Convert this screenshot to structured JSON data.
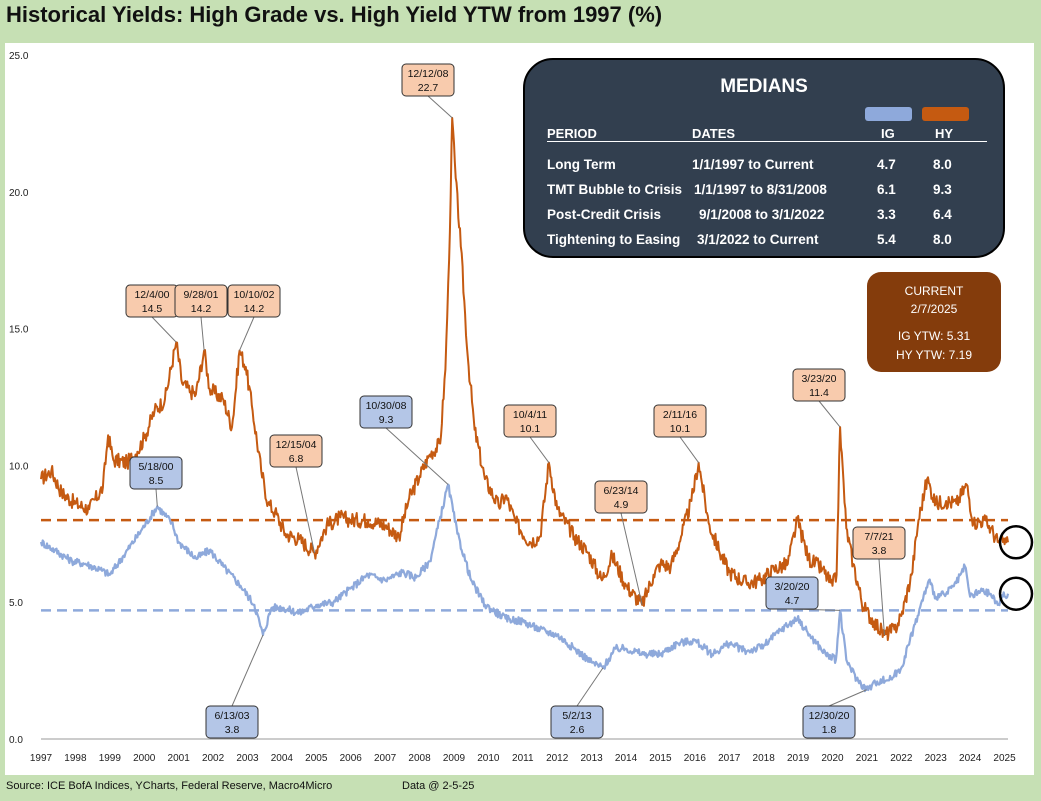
{
  "title": "Historical Yields: High Grade vs. High Yield YTW from 1997 (%)",
  "footer": {
    "source": "Source: ICE BofA Indices, YCharts, Federal Reserve, Macro4Micro",
    "data_date": "Data @ 2-5-25"
  },
  "colors": {
    "hy": "#c55a11",
    "ig": "#8ea9db",
    "hy_label_fill": "#f8cbad",
    "ig_label_fill": "#b4c6e7",
    "medians_box": "#323f4f",
    "current_box": "#843c0c",
    "background": "#c6e0b4"
  },
  "medians": {
    "title": "MEDIANS",
    "headers": {
      "period": "PERIOD",
      "dates": "DATES",
      "ig": "IG",
      "hy": "HY"
    },
    "rows": [
      {
        "period": "Long Term",
        "dates": "1/1/1997 to Current",
        "ig": "4.7",
        "hy": "8.0"
      },
      {
        "period": "TMT Bubble to Crisis",
        "dates": "1/1/1997 to 8/31/2008",
        "ig": "6.1",
        "hy": "9.3"
      },
      {
        "period": "Post-Credit Crisis",
        "dates": "9/1/2008 to 3/1/2022",
        "ig": "3.3",
        "hy": "6.4"
      },
      {
        "period": "Tightening to Easing",
        "dates": "3/1/2022 to Current",
        "ig": "5.4",
        "hy": "8.0"
      }
    ]
  },
  "current": {
    "heading": "CURRENT",
    "date": "2/7/2025",
    "ig_text": "IG YTW:  5.31",
    "hy_text": "HY YTW:  7.19"
  },
  "chart_data": {
    "type": "line",
    "title": "Historical Yields: High Grade vs. High Yield YTW from 1997 (%)",
    "xlabel": "",
    "ylabel": "",
    "xlim": [
      1997,
      2025.1
    ],
    "ylim": [
      0,
      25
    ],
    "y_ticks": [
      "0.0",
      "5.0",
      "10.0",
      "15.0",
      "20.0",
      "25.0"
    ],
    "x_ticks": [
      "1997",
      "1998",
      "1999",
      "2000",
      "2001",
      "2002",
      "2003",
      "2004",
      "2005",
      "2006",
      "2007",
      "2008",
      "2009",
      "2010",
      "2011",
      "2012",
      "2013",
      "2014",
      "2015",
      "2016",
      "2017",
      "2018",
      "2019",
      "2020",
      "2021",
      "2022",
      "2023",
      "2024",
      "2025"
    ],
    "grid": false,
    "legend": "none",
    "series": [
      {
        "key": "hy",
        "color": "#c55a11",
        "points": [
          [
            1997.0,
            9.5
          ],
          [
            1997.3,
            9.8
          ],
          [
            1997.6,
            9.0
          ],
          [
            1998.0,
            8.6
          ],
          [
            1998.4,
            8.4
          ],
          [
            1998.8,
            9.2
          ],
          [
            1998.95,
            11.1
          ],
          [
            1999.1,
            10.2
          ],
          [
            1999.5,
            10.1
          ],
          [
            1999.8,
            10.5
          ],
          [
            2000.0,
            11.0
          ],
          [
            2000.3,
            12.0
          ],
          [
            2000.6,
            12.4
          ],
          [
            2000.93,
            14.5
          ],
          [
            2001.1,
            13.0
          ],
          [
            2001.35,
            12.7
          ],
          [
            2001.5,
            12.6
          ],
          [
            2001.74,
            14.2
          ],
          [
            2001.9,
            12.8
          ],
          [
            2002.3,
            12.4
          ],
          [
            2002.55,
            11.4
          ],
          [
            2002.77,
            14.2
          ],
          [
            2002.95,
            13.6
          ],
          [
            2003.15,
            12.0
          ],
          [
            2003.4,
            9.8
          ],
          [
            2003.6,
            8.6
          ],
          [
            2003.8,
            8.3
          ],
          [
            2004.1,
            7.5
          ],
          [
            2004.5,
            7.3
          ],
          [
            2004.95,
            6.8
          ],
          [
            2005.3,
            7.8
          ],
          [
            2005.7,
            8.1
          ],
          [
            2006.0,
            8.0
          ],
          [
            2006.5,
            8.0
          ],
          [
            2007.0,
            7.8
          ],
          [
            2007.4,
            7.4
          ],
          [
            2007.7,
            8.8
          ],
          [
            2008.0,
            9.6
          ],
          [
            2008.3,
            10.4
          ],
          [
            2008.6,
            10.8
          ],
          [
            2008.75,
            13.5
          ],
          [
            2008.86,
            17.5
          ],
          [
            2008.95,
            22.7
          ],
          [
            2009.05,
            20.5
          ],
          [
            2009.2,
            18.0
          ],
          [
            2009.4,
            14.0
          ],
          [
            2009.6,
            11.3
          ],
          [
            2009.9,
            9.5
          ],
          [
            2010.3,
            8.5
          ],
          [
            2010.5,
            8.9
          ],
          [
            2010.8,
            7.9
          ],
          [
            2011.2,
            7.2
          ],
          [
            2011.5,
            7.4
          ],
          [
            2011.76,
            10.1
          ],
          [
            2012.0,
            8.4
          ],
          [
            2012.5,
            7.4
          ],
          [
            2012.9,
            6.8
          ],
          [
            2013.3,
            5.8
          ],
          [
            2013.6,
            6.7
          ],
          [
            2014.0,
            5.6
          ],
          [
            2014.47,
            4.9
          ],
          [
            2014.8,
            6.0
          ],
          [
            2015.0,
            6.4
          ],
          [
            2015.3,
            6.3
          ],
          [
            2015.6,
            7.4
          ],
          [
            2015.9,
            8.7
          ],
          [
            2016.11,
            10.1
          ],
          [
            2016.4,
            7.9
          ],
          [
            2016.7,
            6.9
          ],
          [
            2017.0,
            6.1
          ],
          [
            2017.5,
            5.7
          ],
          [
            2017.9,
            5.8
          ],
          [
            2018.3,
            6.2
          ],
          [
            2018.7,
            6.4
          ],
          [
            2018.98,
            8.0
          ],
          [
            2019.3,
            6.6
          ],
          [
            2019.7,
            6.2
          ],
          [
            2020.0,
            5.6
          ],
          [
            2020.12,
            6.0
          ],
          [
            2020.22,
            11.4
          ],
          [
            2020.4,
            7.7
          ],
          [
            2020.6,
            6.4
          ],
          [
            2020.9,
            4.8
          ],
          [
            2021.2,
            4.3
          ],
          [
            2021.51,
            3.8
          ],
          [
            2021.8,
            4.0
          ],
          [
            2022.0,
            4.5
          ],
          [
            2022.3,
            6.0
          ],
          [
            2022.5,
            8.0
          ],
          [
            2022.75,
            9.5
          ],
          [
            2023.0,
            8.6
          ],
          [
            2023.3,
            8.7
          ],
          [
            2023.6,
            8.6
          ],
          [
            2023.9,
            9.3
          ],
          [
            2024.1,
            7.9
          ],
          [
            2024.4,
            8.0
          ],
          [
            2024.6,
            7.7
          ],
          [
            2024.8,
            7.2
          ],
          [
            2024.95,
            7.2
          ],
          [
            2025.1,
            7.19
          ]
        ]
      },
      {
        "key": "ig",
        "color": "#8ea9db",
        "points": [
          [
            1997.0,
            7.2
          ],
          [
            1997.4,
            6.9
          ],
          [
            1997.9,
            6.5
          ],
          [
            1998.3,
            6.4
          ],
          [
            1998.7,
            6.2
          ],
          [
            1999.0,
            6.0
          ],
          [
            1999.4,
            6.7
          ],
          [
            1999.9,
            7.6
          ],
          [
            2000.38,
            8.5
          ],
          [
            2000.8,
            7.9
          ],
          [
            2001.0,
            7.2
          ],
          [
            2001.5,
            6.6
          ],
          [
            2001.9,
            6.9
          ],
          [
            2002.3,
            6.3
          ],
          [
            2002.8,
            5.6
          ],
          [
            2003.2,
            4.9
          ],
          [
            2003.45,
            3.8
          ],
          [
            2003.7,
            4.8
          ],
          [
            2004.0,
            4.8
          ],
          [
            2004.5,
            4.6
          ],
          [
            2005.0,
            4.9
          ],
          [
            2005.5,
            5.0
          ],
          [
            2006.0,
            5.5
          ],
          [
            2006.5,
            6.0
          ],
          [
            2007.0,
            5.8
          ],
          [
            2007.5,
            6.1
          ],
          [
            2007.9,
            5.9
          ],
          [
            2008.3,
            6.5
          ],
          [
            2008.83,
            9.3
          ],
          [
            2009.1,
            7.5
          ],
          [
            2009.5,
            5.8
          ],
          [
            2009.9,
            4.9
          ],
          [
            2010.5,
            4.4
          ],
          [
            2011.0,
            4.3
          ],
          [
            2011.5,
            4.0
          ],
          [
            2012.0,
            3.8
          ],
          [
            2012.5,
            3.3
          ],
          [
            2013.0,
            2.8
          ],
          [
            2013.33,
            2.6
          ],
          [
            2013.7,
            3.3
          ],
          [
            2014.0,
            3.3
          ],
          [
            2014.5,
            3.1
          ],
          [
            2015.0,
            3.1
          ],
          [
            2015.5,
            3.5
          ],
          [
            2016.0,
            3.6
          ],
          [
            2016.5,
            3.1
          ],
          [
            2017.0,
            3.5
          ],
          [
            2017.5,
            3.2
          ],
          [
            2018.0,
            3.4
          ],
          [
            2018.5,
            4.0
          ],
          [
            2018.98,
            4.4
          ],
          [
            2019.4,
            3.7
          ],
          [
            2019.8,
            3.1
          ],
          [
            2020.1,
            2.9
          ],
          [
            2020.22,
            4.7
          ],
          [
            2020.4,
            2.9
          ],
          [
            2020.7,
            2.2
          ],
          [
            2020.99,
            1.8
          ],
          [
            2021.3,
            2.1
          ],
          [
            2021.7,
            2.2
          ],
          [
            2022.0,
            2.6
          ],
          [
            2022.4,
            4.2
          ],
          [
            2022.8,
            5.8
          ],
          [
            2023.0,
            5.2
          ],
          [
            2023.3,
            5.3
          ],
          [
            2023.6,
            5.7
          ],
          [
            2023.85,
            6.3
          ],
          [
            2024.0,
            5.2
          ],
          [
            2024.3,
            5.4
          ],
          [
            2024.6,
            5.3
          ],
          [
            2024.8,
            4.9
          ],
          [
            2024.95,
            5.2
          ],
          [
            2025.1,
            5.31
          ]
        ]
      }
    ],
    "median_lines": [
      {
        "key": "hy",
        "value": 8.0
      },
      {
        "key": "ig",
        "value": 4.7
      }
    ],
    "annotations": [
      {
        "series": "hy",
        "date": "12/4/00",
        "value": "14.5",
        "x": 2000.93,
        "y": 14.5
      },
      {
        "series": "hy",
        "date": "9/28/01",
        "value": "14.2",
        "x": 2001.74,
        "y": 14.2
      },
      {
        "series": "hy",
        "date": "10/10/02",
        "value": "14.2",
        "x": 2002.77,
        "y": 14.2
      },
      {
        "series": "hy",
        "date": "12/15/04",
        "value": "6.8",
        "x": 2004.95,
        "y": 6.8
      },
      {
        "series": "hy",
        "date": "12/12/08",
        "value": "22.7",
        "x": 2008.95,
        "y": 22.7
      },
      {
        "series": "hy",
        "date": "10/4/11",
        "value": "10.1",
        "x": 2011.76,
        "y": 10.1
      },
      {
        "series": "hy",
        "date": "6/23/14",
        "value": "4.9",
        "x": 2014.47,
        "y": 4.9
      },
      {
        "series": "hy",
        "date": "2/11/16",
        "value": "10.1",
        "x": 2016.11,
        "y": 10.1
      },
      {
        "series": "hy",
        "date": "3/23/20",
        "value": "11.4",
        "x": 2020.22,
        "y": 11.4
      },
      {
        "series": "hy",
        "date": "7/7/21",
        "value": "3.8",
        "x": 2021.51,
        "y": 3.8
      },
      {
        "series": "ig",
        "date": "5/18/00",
        "value": "8.5",
        "x": 2000.38,
        "y": 8.5
      },
      {
        "series": "ig",
        "date": "6/13/03",
        "value": "3.8",
        "x": 2003.45,
        "y": 3.8
      },
      {
        "series": "ig",
        "date": "10/30/08",
        "value": "9.3",
        "x": 2008.83,
        "y": 9.3
      },
      {
        "series": "ig",
        "date": "5/2/13",
        "value": "2.6",
        "x": 2013.33,
        "y": 2.6
      },
      {
        "series": "ig",
        "date": "3/20/20",
        "value": "4.7",
        "x": 2020.22,
        "y": 4.7
      },
      {
        "series": "ig",
        "date": "12/30/20",
        "value": "1.8",
        "x": 2020.99,
        "y": 1.8
      }
    ]
  }
}
